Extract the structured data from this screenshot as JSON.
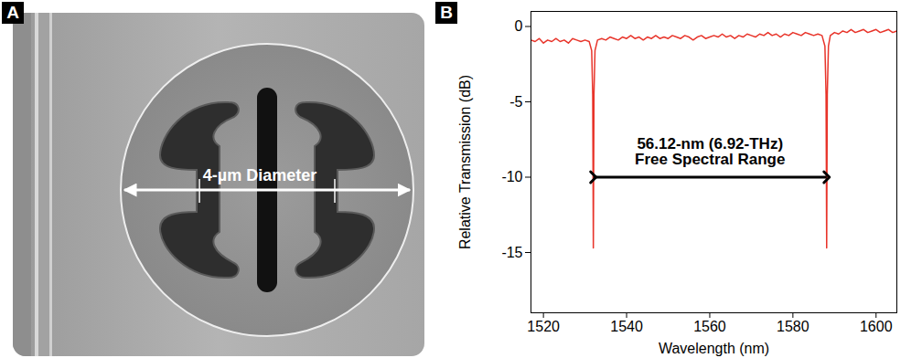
{
  "panel_a": {
    "letter": "A",
    "annotation": "4-µm Diameter"
  },
  "panel_b": {
    "letter": "B"
  },
  "chart_data": {
    "type": "line",
    "x_label": "Wavelength (nm)",
    "y_label": "Relative Transmission (dB)",
    "color": "#e8342a",
    "grid": false,
    "xlim": [
      1517,
      1605
    ],
    "xticks": [
      1520,
      1540,
      1560,
      1580,
      1600
    ],
    "ylim": [
      -19,
      1
    ],
    "yticks": [
      0,
      -5,
      -10,
      -15
    ],
    "x": [
      1517,
      1518,
      1519,
      1520,
      1521,
      1522,
      1523,
      1524,
      1525,
      1526,
      1527,
      1528,
      1529,
      1530,
      1531,
      1531.6,
      1531.85,
      1532.0,
      1532.15,
      1532.4,
      1533,
      1534,
      1535,
      1536,
      1537,
      1538,
      1539,
      1540,
      1541,
      1542,
      1543,
      1544,
      1545,
      1546,
      1547,
      1548,
      1549,
      1550,
      1551,
      1552,
      1553,
      1554,
      1555,
      1556,
      1557,
      1558,
      1559,
      1560,
      1561,
      1562,
      1563,
      1564,
      1565,
      1566,
      1567,
      1568,
      1569,
      1570,
      1571,
      1572,
      1573,
      1574,
      1575,
      1576,
      1577,
      1578,
      1579,
      1580,
      1581,
      1582,
      1583,
      1584,
      1585,
      1586,
      1587,
      1587.7,
      1587.97,
      1588.12,
      1588.27,
      1588.55,
      1589,
      1590,
      1591,
      1592,
      1593,
      1594,
      1595,
      1596,
      1597,
      1598,
      1599,
      1600,
      1601,
      1602,
      1603,
      1604,
      1605
    ],
    "values": [
      -0.9,
      -1.0,
      -0.8,
      -1.1,
      -0.9,
      -1.0,
      -0.8,
      -1.0,
      -0.9,
      -1.1,
      -0.8,
      -0.9,
      -1.0,
      -0.9,
      -1.0,
      -1.6,
      -4.5,
      -14.7,
      -4.5,
      -1.6,
      -0.9,
      -0.8,
      -0.9,
      -0.7,
      -0.8,
      -0.9,
      -0.7,
      -0.8,
      -0.6,
      -0.8,
      -0.7,
      -0.9,
      -0.7,
      -0.8,
      -0.6,
      -0.8,
      -0.7,
      -0.8,
      -0.6,
      -0.7,
      -0.8,
      -0.6,
      -0.7,
      -0.9,
      -0.7,
      -0.6,
      -0.8,
      -0.7,
      -0.6,
      -0.7,
      -0.5,
      -0.7,
      -0.6,
      -0.8,
      -0.6,
      -0.7,
      -0.5,
      -0.6,
      -0.7,
      -0.5,
      -0.6,
      -0.4,
      -0.6,
      -0.5,
      -0.7,
      -0.5,
      -0.6,
      -0.4,
      -0.5,
      -0.6,
      -0.4,
      -0.5,
      -0.6,
      -0.5,
      -0.6,
      -1.3,
      -4.5,
      -14.7,
      -4.5,
      -1.3,
      -0.6,
      -0.4,
      -0.5,
      -0.3,
      -0.4,
      -0.2,
      -0.4,
      -0.3,
      -0.2,
      -0.4,
      -0.3,
      -0.2,
      -0.4,
      -0.3,
      -0.2,
      -0.4,
      -0.3
    ],
    "annotations": [
      {
        "text": [
          "56.12-nm (6.92-THz)",
          "Free Spectral Range"
        ],
        "x_start": 1532.0,
        "x_end": 1588.12,
        "y": -10
      }
    ]
  }
}
